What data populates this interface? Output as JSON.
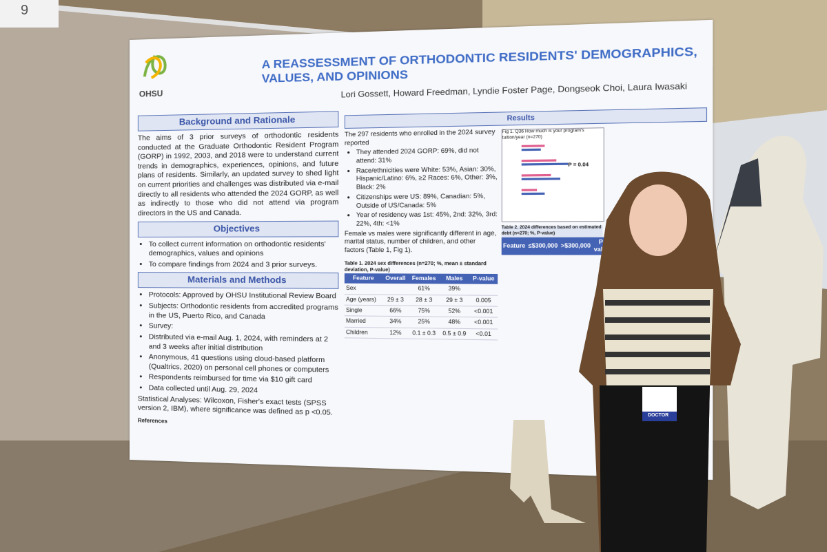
{
  "sign": "9",
  "poster": {
    "logo": "OHSU",
    "title": "A REASSESSMENT OF ORTHODONTIC RESIDENTS' DEMOGRAPHICS, VALUES, AND OPINIONS",
    "authors": "Lori Gossett, Howard Freedman, Lyndie Foster Page, Dongseok Choi, Laura Iwasaki",
    "background": {
      "heading": "Background and Rationale",
      "text": "The aims of 3 prior surveys of orthodontic residents conducted at the Graduate Orthodontic Resident Program (GORP) in 1992, 2003, and 2018 were to understand current trends in demographics, experiences, opinions, and future plans of residents. Similarly, an updated survey to shed light on current priorities and challenges was distributed via e-mail directly to all residents who attended the 2024 GORP, as well as indirectly to those who did not attend via program directors in the US and Canada."
    },
    "objectives": {
      "heading": "Objectives",
      "bullets": [
        "To collect current information on orthodontic residents' demographics, values and opinions",
        "To compare findings from 2024 and 3 prior surveys."
      ]
    },
    "methods": {
      "heading": "Materials and Methods",
      "bullets": [
        "Protocols: Approved by OHSU Institutional Review Board",
        "Subjects: Orthodontic residents from accredited programs in the US, Puerto Rico, and Canada",
        "Survey:",
        "Distributed via e-mail Aug. 1, 2024, with reminders at 2 and 3 weeks after initial distribution",
        "Anonymous, 41 questions using cloud-based platform (Qualtrics, 2020) on personal cell phones or computers",
        "Respondents reimbursed for time via $10 gift card",
        "Data collected until Aug. 29, 2024"
      ],
      "stats": "Statistical Analyses: Wilcoxon, Fisher's exact tests (SPSS version 2, IBM), where significance was defined as p <0.05."
    },
    "references": "References",
    "results": {
      "heading": "Results",
      "intro": "The 297 residents who enrolled in the 2024 survey reported",
      "bullets": [
        "They attended 2024 GORP: 69%, did not attend: 31%",
        "Race/ethnicities were White: 53%, Asian: 30%, Hispanic/Latino: 6%, ≥2 Races: 6%, Other: 3%, Black: 2%",
        "Citizenships were US: 89%, Canadian: 5%, Outside of US/Canada: 5%",
        "Year of residency was 1st: 45%, 2nd: 32%, 3rd: 22%, 4th: <1%"
      ],
      "outro": "Female vs males were significantly different in age, marital status, number of children, and other factors (Table 1, Fig 1)."
    },
    "fig": {
      "caption": "Fig 1. Q36 How much is your program's tuition/year (n=270)",
      "p": "P = 0.04"
    },
    "table1": {
      "caption": "Table 1. 2024 sex differences (n=270; %, mean ± standard deviation, P-value)",
      "header": [
        "Feature",
        "Overall",
        "Females",
        "Males",
        "P-value"
      ],
      "rows": [
        [
          "Sex",
          null,
          "61%",
          "39%",
          null
        ],
        [
          "Age (years)",
          "29 ± 3",
          "28 ± 3",
          "29 ± 3",
          "0.005"
        ],
        [
          "Single",
          "66%",
          "75%",
          "52%",
          "<0.001"
        ],
        [
          "Married",
          "34%",
          "25%",
          "48%",
          "<0.001"
        ],
        [
          "Children",
          "12%",
          "0.1 ± 0.3",
          "0.5 ± 0.9",
          "<0.01"
        ]
      ]
    },
    "table2": {
      "caption": "Table 2. 2024 differences based on estimated debt (n=270; %, P-value)",
      "header": [
        "Feature",
        "≤$300,000",
        ">$300,000",
        "P-value"
      ]
    }
  },
  "badge": "DOCTOR"
}
